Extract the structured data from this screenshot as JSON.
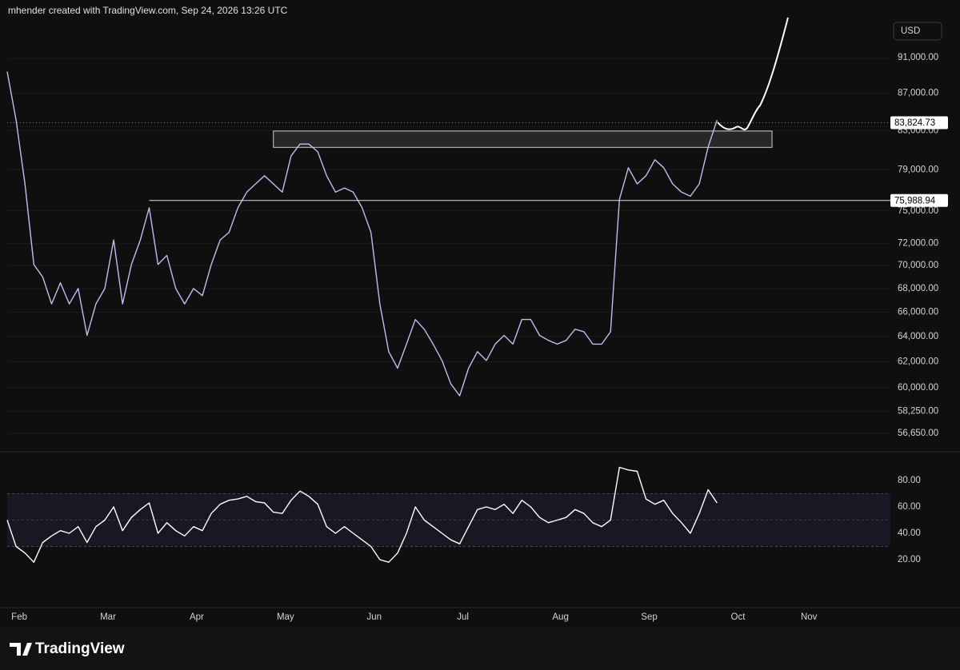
{
  "header": {
    "text": "mhender created with TradingView.com, Sep 24, 2026 13:26 UTC"
  },
  "chart_data": [
    {
      "type": "line",
      "currency": "USD",
      "log_scale": true,
      "grid": true,
      "color": "#c9b8f0",
      "categories": [
        null,
        "Feb",
        null,
        null,
        null,
        null,
        null,
        null,
        null,
        null,
        null,
        "Mar",
        null,
        null,
        null,
        null,
        null,
        null,
        null,
        null,
        null,
        "Apr",
        null,
        null,
        null,
        null,
        null,
        null,
        null,
        null,
        null,
        "May",
        null,
        null,
        null,
        null,
        null,
        null,
        null,
        null,
        null,
        "Jun",
        null,
        null,
        null,
        null,
        null,
        null,
        null,
        null,
        null,
        "Jul",
        null,
        null,
        null,
        null,
        null,
        null,
        null,
        null,
        null,
        null,
        "Aug",
        null,
        null,
        null,
        null,
        null,
        null,
        null,
        null,
        null,
        "Sep",
        null,
        null,
        null,
        null,
        null,
        null,
        null,
        null,
        null,
        "Oct",
        null,
        null,
        null,
        null,
        null,
        null,
        null,
        "Nov",
        null,
        null,
        null,
        null,
        null,
        null,
        null,
        null,
        null
      ],
      "values": [
        89400,
        84100,
        77600,
        70100,
        69000,
        66700,
        68500,
        66700,
        68000,
        64100,
        66700,
        68000,
        72300,
        66700,
        70100,
        72300,
        75300,
        70100,
        70900,
        68000,
        66700,
        68000,
        67400,
        70100,
        72300,
        73000,
        75300,
        76800,
        77600,
        78400,
        77600,
        76800,
        80400,
        81600,
        81600,
        80800,
        78400,
        76800,
        77200,
        76800,
        75300,
        73000,
        66700,
        62800,
        61500,
        63400,
        65400,
        64600,
        63400,
        62100,
        60300,
        59400,
        61500,
        62800,
        62100,
        63400,
        64100,
        63400,
        65400,
        65400,
        64100,
        63700,
        63400,
        63700,
        64600,
        64400,
        63400,
        63400,
        64400,
        76100,
        79200,
        77600,
        78400,
        80000,
        79200,
        77600,
        76800,
        76400,
        77600,
        81300,
        84100,
        null,
        null,
        null,
        null,
        null,
        null,
        null,
        null,
        null,
        null,
        null,
        null,
        null,
        null,
        null,
        null,
        null,
        null,
        null
      ],
      "ylim": [
        55630,
        95520
      ],
      "yticks": [
        {
          "value": 91000,
          "label": "91,000.00"
        },
        {
          "value": 87000,
          "label": "87,000.00"
        },
        {
          "value": 83000,
          "label": "83,000.00"
        },
        {
          "value": 79000,
          "label": "79,000.00"
        },
        {
          "value": 75000,
          "label": "75,000.00"
        },
        {
          "value": 72000,
          "label": "72,000.00"
        },
        {
          "value": 70000,
          "label": "70,000.00"
        },
        {
          "value": 68000,
          "label": "68,000.00"
        },
        {
          "value": 66000,
          "label": "66,000.00"
        },
        {
          "value": 64000,
          "label": "64,000.00"
        },
        {
          "value": 62000,
          "label": "62,000.00"
        },
        {
          "value": 60000,
          "label": "60,000.00"
        },
        {
          "value": 58250,
          "label": "58,250.00"
        },
        {
          "value": 56650,
          "label": "56,650.00"
        }
      ],
      "levels": [
        {
          "value": 83824.73,
          "label": "83,824.73"
        },
        {
          "value": 75988.94,
          "label": "75,988.94"
        }
      ],
      "zone": [
        81260,
        82950
      ]
    },
    {
      "type": "line",
      "color": "#ffffff",
      "values": [
        50,
        30,
        25,
        18,
        33,
        38,
        42,
        40,
        45,
        33,
        45,
        50,
        60,
        42,
        52,
        58,
        63,
        40,
        48,
        42,
        38,
        45,
        42,
        55,
        62,
        65,
        66,
        68,
        64,
        63,
        56,
        55,
        65,
        72,
        68,
        62,
        45,
        40,
        45,
        40,
        35,
        30,
        20,
        18,
        25,
        40,
        60,
        50,
        45,
        40,
        35,
        32,
        45,
        58,
        60,
        58,
        62,
        55,
        65,
        60,
        52,
        48,
        50,
        52,
        58,
        55,
        48,
        45,
        50,
        90,
        88,
        87,
        66,
        62,
        65,
        55,
        48,
        40,
        55,
        73,
        63
      ],
      "ylim": [
        -15.2,
        98.8
      ],
      "yticks": [
        {
          "value": 20,
          "label": "20.00"
        },
        {
          "value": 40,
          "label": "40.00"
        },
        {
          "value": 60,
          "label": "60.00"
        },
        {
          "value": 80,
          "label": "80.00"
        }
      ],
      "band": [
        30,
        70
      ],
      "midline": 50
    }
  ],
  "footer": {
    "brand": "TradingView"
  }
}
